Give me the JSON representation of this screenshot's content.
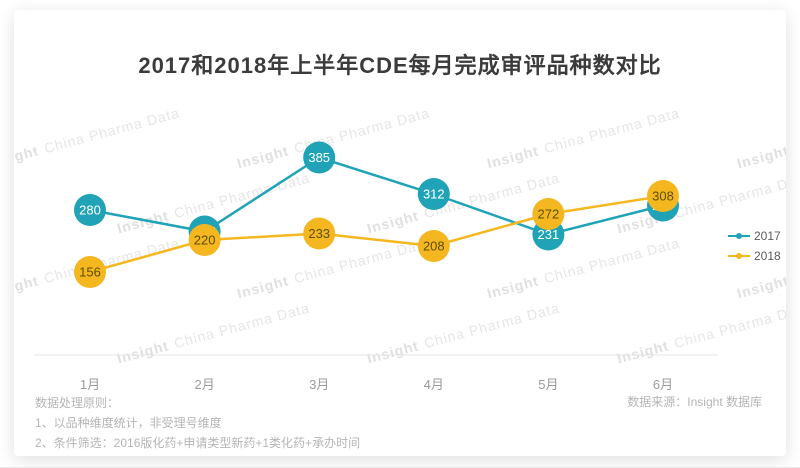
{
  "title": "2017和2018年上半年CDE每月完成审评品种数对比",
  "chart_data": {
    "type": "line",
    "title": "2017和2018年上半年CDE每月完成审评品种数对比",
    "categories": [
      "1月",
      "2月",
      "3月",
      "4月",
      "5月",
      "6月"
    ],
    "series": [
      {
        "name": "2017",
        "color": "#21a3b7",
        "label_color": "#ffffff",
        "values": [
          280,
          237,
          385,
          312,
          231,
          289
        ]
      },
      {
        "name": "2018",
        "color": "#f4b71f",
        "label_color": "#5e4e06",
        "values": [
          156,
          220,
          233,
          208,
          272,
          308
        ]
      }
    ],
    "xlabel": "",
    "ylabel": "",
    "y_axis_visible": false,
    "grid": false,
    "legend_position": "right",
    "data_labels": "on-point",
    "axis_color": "#e4e4e4",
    "tick_label_color": "#9b9b9b"
  },
  "legend": {
    "items": [
      {
        "label": "2017",
        "color": "#21a3b7"
      },
      {
        "label": "2018",
        "color": "#f4b71f"
      }
    ]
  },
  "footnotes": {
    "heading": "数据处理原则：",
    "lines": [
      "1、以品种维度统计，非受理号维度",
      "2、条件筛选：2016版化药+申请类型新药+1类化药+承办时间"
    ]
  },
  "source": {
    "label": "数据来源：Insight 数据库"
  },
  "watermark": {
    "bold": "Insight",
    "rest": "China Pharma Data"
  }
}
